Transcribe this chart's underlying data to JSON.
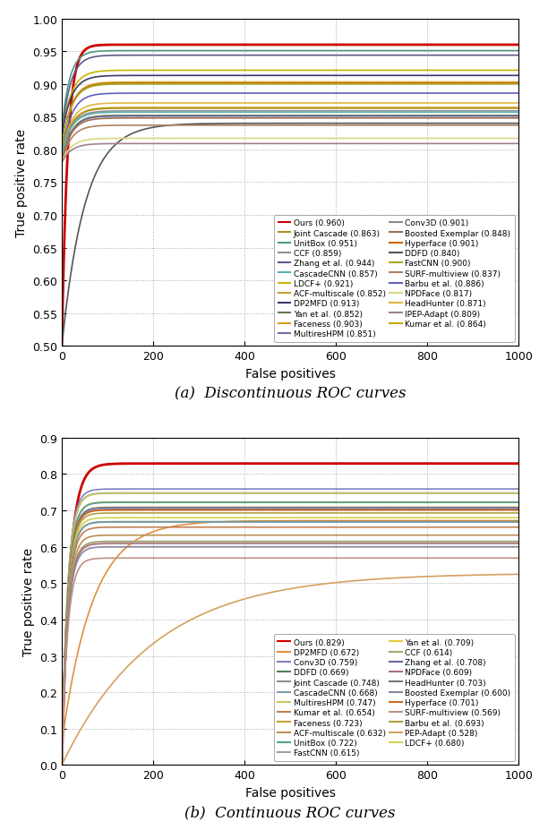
{
  "chart_a": {
    "xlabel": "False positives",
    "ylabel": "True positive rate",
    "caption": "(a)  Discontinuous ROC curves",
    "xlim": [
      0,
      1000
    ],
    "ylim": [
      0.5,
      1.0
    ],
    "yticks": [
      0.5,
      0.55,
      0.6,
      0.65,
      0.7,
      0.75,
      0.8,
      0.85,
      0.9,
      0.95,
      1.0
    ],
    "xticks": [
      0,
      200,
      400,
      600,
      800,
      1000
    ],
    "curves": [
      {
        "label": "Ours (0.960)",
        "color": "#cc0000",
        "lw": 2.0,
        "final": 0.96,
        "start": 0.5,
        "k": 80
      },
      {
        "label": "UnitBox (0.951)",
        "color": "#4e9a84",
        "lw": 1.2,
        "final": 0.951,
        "start": 0.83,
        "k": 60
      },
      {
        "label": "Zhang et al. (0.944)",
        "color": "#5a5a8a",
        "lw": 1.2,
        "final": 0.944,
        "start": 0.82,
        "k": 55
      },
      {
        "label": "LDCF+ (0.921)",
        "color": "#c8b400",
        "lw": 1.2,
        "final": 0.921,
        "start": 0.82,
        "k": 50
      },
      {
        "label": "DP2MFD (0.913)",
        "color": "#3a3a6a",
        "lw": 1.2,
        "final": 0.913,
        "start": 0.82,
        "k": 50
      },
      {
        "label": "Faceness (0.903)",
        "color": "#d4a020",
        "lw": 1.2,
        "final": 0.903,
        "start": 0.8,
        "k": 50
      },
      {
        "label": "Conv3D (0.901)",
        "color": "#888888",
        "lw": 1.2,
        "final": 0.901,
        "start": 0.8,
        "k": 50
      },
      {
        "label": "Hyperface (0.901)",
        "color": "#cc6600",
        "lw": 1.2,
        "final": 0.901,
        "start": 0.8,
        "k": 50
      },
      {
        "label": "FastCNN (0.900)",
        "color": "#a8a820",
        "lw": 1.2,
        "final": 0.9,
        "start": 0.8,
        "k": 50
      },
      {
        "label": "Barbu et al. (0.886)",
        "color": "#6060c0",
        "lw": 1.2,
        "final": 0.886,
        "start": 0.79,
        "k": 50
      },
      {
        "label": "HeadHunter (0.871)",
        "color": "#e0b840",
        "lw": 1.2,
        "final": 0.871,
        "start": 0.79,
        "k": 50
      },
      {
        "label": "Kumar et al. (0.864)",
        "color": "#c8a800",
        "lw": 1.2,
        "final": 0.864,
        "start": 0.79,
        "k": 50
      },
      {
        "label": "Joint Cascade (0.863)",
        "color": "#b09020",
        "lw": 1.2,
        "final": 0.863,
        "start": 0.79,
        "k": 50
      },
      {
        "label": "CCF (0.859)",
        "color": "#909090",
        "lw": 1.2,
        "final": 0.859,
        "start": 0.79,
        "k": 50
      },
      {
        "label": "CascadeCNN (0.857)",
        "color": "#5ab0b0",
        "lw": 1.2,
        "final": 0.857,
        "start": 0.79,
        "k": 50
      },
      {
        "label": "ACF-multiscale (0.852)",
        "color": "#c0a030",
        "lw": 1.2,
        "final": 0.852,
        "start": 0.78,
        "k": 50
      },
      {
        "label": "Yan et al. (0.852)",
        "color": "#607850",
        "lw": 1.2,
        "final": 0.852,
        "start": 0.78,
        "k": 50
      },
      {
        "label": "MultiresHPM (0.851)",
        "color": "#7070a0",
        "lw": 1.2,
        "final": 0.851,
        "start": 0.78,
        "k": 50
      },
      {
        "label": "Boosted Exemplar (0.848)",
        "color": "#a07050",
        "lw": 1.2,
        "final": 0.848,
        "start": 0.78,
        "k": 50
      },
      {
        "label": "DDFD (0.840)",
        "color": "#555555",
        "lw": 1.2,
        "final": 0.84,
        "start": 0.5,
        "k": 20
      },
      {
        "label": "SURF-multiview (0.837)",
        "color": "#b08060",
        "lw": 1.2,
        "final": 0.837,
        "start": 0.78,
        "k": 50
      },
      {
        "label": "NPDFace (0.817)",
        "color": "#d8d880",
        "lw": 1.2,
        "final": 0.817,
        "start": 0.78,
        "k": 50
      },
      {
        "label": "IPEP-Adapt (0.809)",
        "color": "#a08090",
        "lw": 1.2,
        "final": 0.809,
        "start": 0.78,
        "k": 50
      }
    ],
    "legend_entries_col1": [
      [
        "Ours (0.960)",
        "#cc0000"
      ],
      [
        "UnitBox (0.951)",
        "#4e9a84"
      ],
      [
        "Zhang et al. (0.944)",
        "#5a5a8a"
      ],
      [
        "LDCF+ (0.921)",
        "#c8b400"
      ],
      [
        "DP2MFD (0.913)",
        "#3a3a6a"
      ],
      [
        "Faceness (0.903)",
        "#d4a020"
      ],
      [
        "Conv3D (0.901)",
        "#888888"
      ],
      [
        "Hyperface (0.901)",
        "#cc6600"
      ],
      [
        "FastCNN (0.900)",
        "#a8a820"
      ],
      [
        "Barbu et al. (0.886)",
        "#6060c0"
      ],
      [
        "HeadHunter (0.871)",
        "#e0b840"
      ],
      [
        "Kumar et al. (0.864)",
        "#c8a800"
      ]
    ],
    "legend_entries_col2": [
      [
        "Joint Cascade (0.863)",
        "#b09020"
      ],
      [
        "CCF (0.859)",
        "#909090"
      ],
      [
        "CascadeCNN (0.857)",
        "#5ab0b0"
      ],
      [
        "ACF-multiscale (0.852)",
        "#c0a030"
      ],
      [
        "Yan et al. (0.852)",
        "#607850"
      ],
      [
        "MultiresHPM (0.851)",
        "#7070a0"
      ],
      [
        "Boosted Exemplar (0.848)",
        "#a07050"
      ],
      [
        "DDFD (0.840)",
        "#555555"
      ],
      [
        "SURF-multiview (0.837)",
        "#b08060"
      ],
      [
        "NPDFace (0.817)",
        "#d8d880"
      ],
      [
        "IPEP-Adapt (0.809)",
        "#a08090"
      ]
    ]
  },
  "chart_b": {
    "xlabel": "False positives",
    "ylabel": "True positive rate",
    "caption": "(b)  Continuous ROC curves",
    "xlim": [
      0,
      1000
    ],
    "ylim": [
      0.0,
      0.9
    ],
    "yticks": [
      0.0,
      0.1,
      0.2,
      0.3,
      0.4,
      0.5,
      0.6,
      0.7,
      0.8,
      0.9
    ],
    "xticks": [
      0,
      200,
      400,
      600,
      800,
      1000
    ],
    "curves": [
      {
        "label": "Ours (0.829)",
        "color": "#cc0000",
        "lw": 2.0,
        "final": 0.829,
        "start": 0.0,
        "k": 60
      },
      {
        "label": "Conv3D (0.759)",
        "color": "#8080c0",
        "lw": 1.2,
        "final": 0.759,
        "start": 0.0,
        "k": 80
      },
      {
        "label": "Joint Cascade (0.748)",
        "color": "#909090",
        "lw": 1.2,
        "final": 0.748,
        "start": 0.0,
        "k": 80
      },
      {
        "label": "MultiresHPM (0.747)",
        "color": "#c8c860",
        "lw": 1.2,
        "final": 0.747,
        "start": 0.0,
        "k": 80
      },
      {
        "label": "Faceness (0.723)",
        "color": "#c8a030",
        "lw": 1.2,
        "final": 0.723,
        "start": 0.0,
        "k": 80
      },
      {
        "label": "UnitBox (0.722)",
        "color": "#50a090",
        "lw": 1.2,
        "final": 0.722,
        "start": 0.0,
        "k": 80
      },
      {
        "label": "Yan et al. (0.709)",
        "color": "#e8c840",
        "lw": 1.2,
        "final": 0.709,
        "start": 0.0,
        "k": 80
      },
      {
        "label": "Zhang et al. (0.708)",
        "color": "#6868a0",
        "lw": 1.2,
        "final": 0.708,
        "start": 0.0,
        "k": 80
      },
      {
        "label": "HeadHunter (0.703)",
        "color": "#787878",
        "lw": 1.2,
        "final": 0.703,
        "start": 0.0,
        "k": 80
      },
      {
        "label": "Hyperface (0.701)",
        "color": "#d06820",
        "lw": 1.2,
        "final": 0.701,
        "start": 0.0,
        "k": 80
      },
      {
        "label": "Barbu et al. (0.693)",
        "color": "#b0a040",
        "lw": 1.2,
        "final": 0.693,
        "start": 0.0,
        "k": 80
      },
      {
        "label": "LDCF+ (0.680)",
        "color": "#d4d050",
        "lw": 1.2,
        "final": 0.68,
        "start": 0.0,
        "k": 80
      },
      {
        "label": "DP2MFD (0.672)",
        "color": "#e09040",
        "lw": 1.2,
        "final": 0.672,
        "start": 0.06,
        "k": 15
      },
      {
        "label": "DDFD (0.669)",
        "color": "#508050",
        "lw": 1.2,
        "final": 0.669,
        "start": 0.0,
        "k": 80
      },
      {
        "label": "CascadeCNN (0.668)",
        "color": "#80a0b0",
        "lw": 1.2,
        "final": 0.668,
        "start": 0.0,
        "k": 80
      },
      {
        "label": "Kumar et al. (0.654)",
        "color": "#c08050",
        "lw": 1.2,
        "final": 0.654,
        "start": 0.0,
        "k": 80
      },
      {
        "label": "ACF-multiscale (0.632)",
        "color": "#b89050",
        "lw": 1.2,
        "final": 0.632,
        "start": 0.0,
        "k": 80
      },
      {
        "label": "FastCNN (0.615)",
        "color": "#a0a0a0",
        "lw": 1.2,
        "final": 0.615,
        "start": 0.0,
        "k": 80
      },
      {
        "label": "CCF (0.614)",
        "color": "#a8a870",
        "lw": 1.2,
        "final": 0.614,
        "start": 0.0,
        "k": 80
      },
      {
        "label": "NPDFace (0.609)",
        "color": "#a87080",
        "lw": 1.2,
        "final": 0.609,
        "start": 0.0,
        "k": 80
      },
      {
        "label": "Boosted Exemplar (0.600)",
        "color": "#8888a0",
        "lw": 1.2,
        "final": 0.6,
        "start": 0.0,
        "k": 80
      },
      {
        "label": "SURF-multiview (0.569)",
        "color": "#c09080",
        "lw": 1.2,
        "final": 0.569,
        "start": 0.0,
        "k": 80
      },
      {
        "label": "PEP-Adapt (0.528)",
        "color": "#d4a060",
        "lw": 1.2,
        "final": 0.528,
        "start": 0.0,
        "k": 5
      }
    ],
    "legend_entries_col1": [
      [
        "Ours (0.829)",
        "#cc0000"
      ],
      [
        "Conv3D (0.759)",
        "#8080c0"
      ],
      [
        "Joint Cascade (0.748)",
        "#909090"
      ],
      [
        "MultiresHPM (0.747)",
        "#c8c860"
      ],
      [
        "Faceness (0.723)",
        "#c8a030"
      ],
      [
        "UnitBox (0.722)",
        "#50a090"
      ],
      [
        "Yan et al. (0.709)",
        "#e8c840"
      ],
      [
        "Zhang et al. (0.708)",
        "#6868a0"
      ],
      [
        "HeadHunter (0.703)",
        "#787878"
      ],
      [
        "Hyperface (0.701)",
        "#d06820"
      ],
      [
        "Barbu et al. (0.693)",
        "#b0a040"
      ],
      [
        "LDCF+ (0.680)",
        "#d4d050"
      ]
    ],
    "legend_entries_col2": [
      [
        "DP2MFD (0.672)",
        "#e09040"
      ],
      [
        "DDFD (0.669)",
        "#508050"
      ],
      [
        "CascadeCNN (0.668)",
        "#80a0b0"
      ],
      [
        "Kumar et al. (0.654)",
        "#c08050"
      ],
      [
        "ACF-multiscale (0.632)",
        "#b89050"
      ],
      [
        "FastCNN (0.615)",
        "#a0a0a0"
      ],
      [
        "CCF (0.614)",
        "#a8a870"
      ],
      [
        "NPDFace (0.609)",
        "#a87080"
      ],
      [
        "Boosted Exemplar (0.600)",
        "#8888a0"
      ],
      [
        "SURF-multiview (0.569)",
        "#c09080"
      ],
      [
        "PEP-Adapt (0.528)",
        "#d4a060"
      ]
    ]
  }
}
